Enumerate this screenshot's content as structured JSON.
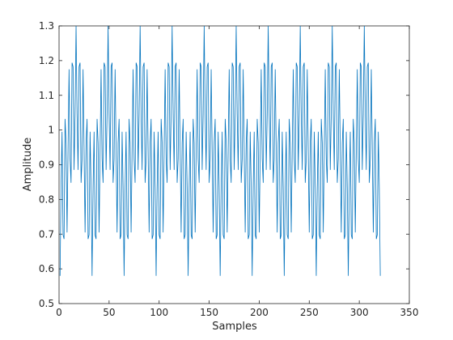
{
  "chart_data": {
    "type": "line",
    "xlabel": "Samples",
    "ylabel": "Amplitude",
    "color": "#0072bd",
    "xlim": [
      0,
      350
    ],
    "xticks": [
      0,
      50,
      100,
      150,
      200,
      250,
      300,
      350
    ],
    "ylim": [
      0.5,
      1.3
    ],
    "yticks": [
      0.5,
      0.6,
      0.7,
      0.8,
      0.9,
      1,
      1.1,
      1.2,
      1.3
    ],
    "x": [
      1,
      2,
      3,
      4,
      5,
      6,
      7,
      8,
      9,
      10,
      11,
      12,
      13,
      14,
      15,
      16,
      17,
      18,
      19,
      20,
      21,
      22,
      23,
      24,
      25,
      26,
      27,
      28,
      29,
      30,
      31,
      32,
      33,
      34,
      35,
      36,
      37,
      38,
      39,
      40,
      41,
      42,
      43,
      44,
      45,
      46,
      47,
      48,
      49,
      50,
      51,
      52,
      53,
      54,
      55,
      56,
      57,
      58,
      59,
      60,
      61,
      62,
      63,
      64,
      65,
      66,
      67,
      68,
      69,
      70,
      71,
      72,
      73,
      74,
      75,
      76,
      77,
      78,
      79,
      80,
      81,
      82,
      83,
      84,
      85,
      86,
      87,
      88,
      89,
      90,
      91,
      92,
      93,
      94,
      95,
      96,
      97,
      98,
      99,
      100,
      101,
      102,
      103,
      104,
      105,
      106,
      107,
      108,
      109,
      110,
      111,
      112,
      113,
      114,
      115,
      116,
      117,
      118,
      119,
      120,
      121,
      122,
      123,
      124,
      125,
      126,
      127,
      128,
      129,
      130,
      131,
      132,
      133,
      134,
      135,
      136,
      137,
      138,
      139,
      140,
      141,
      142,
      143,
      144,
      145,
      146,
      147,
      148,
      149,
      150,
      151,
      152,
      153,
      154,
      155,
      156,
      157,
      158,
      159,
      160,
      161,
      162,
      163,
      164,
      165,
      166,
      167,
      168,
      169,
      170,
      171,
      172,
      173,
      174,
      175,
      176,
      177,
      178,
      179,
      180,
      181,
      182,
      183,
      184,
      185,
      186,
      187,
      188,
      189,
      190,
      191,
      192,
      193,
      194,
      195,
      196,
      197,
      198,
      199,
      200,
      201,
      202,
      203,
      204,
      205,
      206,
      207,
      208,
      209,
      210,
      211,
      212,
      213,
      214,
      215,
      216,
      217,
      218,
      219,
      220,
      221,
      222,
      223,
      224,
      225,
      226,
      227,
      228,
      229,
      230,
      231,
      232,
      233,
      234,
      235,
      236,
      237,
      238,
      239,
      240,
      241,
      242,
      243,
      244,
      245,
      246,
      247,
      248,
      249,
      250,
      251,
      252,
      253,
      254,
      255,
      256,
      257,
      258,
      259,
      260,
      261,
      262,
      263,
      264,
      265,
      266,
      267,
      268,
      269,
      270,
      271,
      272,
      273,
      274,
      275,
      276,
      277,
      278,
      279,
      280,
      281,
      282,
      283,
      284,
      285,
      286,
      287,
      288,
      289,
      290,
      291,
      292,
      293,
      294,
      295,
      296,
      297,
      298,
      299,
      300,
      301,
      302,
      303,
      304,
      305,
      306,
      307,
      308,
      309,
      310,
      311,
      312,
      313,
      314,
      315,
      316,
      317,
      318,
      319,
      320,
      321
    ],
    "values": [
      0.58,
      0.834,
      0.995,
      0.698,
      0.686,
      1.032,
      0.963,
      0.705,
      0.94,
      1.175,
      0.917,
      0.848,
      1.194,
      1.182,
      0.885,
      1.046,
      1.3,
      1.046,
      0.885,
      1.182,
      1.194,
      0.848,
      0.917,
      1.175,
      0.94,
      0.705,
      0.963,
      1.032,
      0.686,
      0.698,
      0.995,
      0.834,
      0.58,
      0.834,
      0.995,
      0.698,
      0.686,
      1.032,
      0.963,
      0.705,
      0.94,
      1.175,
      0.917,
      0.848,
      1.194,
      1.182,
      0.885,
      1.046,
      1.3,
      1.046,
      0.885,
      1.182,
      1.194,
      0.848,
      0.917,
      1.175,
      0.94,
      0.705,
      0.963,
      1.032,
      0.686,
      0.698,
      0.995,
      0.834,
      0.58,
      0.834,
      0.995,
      0.698,
      0.686,
      1.032,
      0.963,
      0.705,
      0.94,
      1.175,
      0.917,
      0.848,
      1.194,
      1.182,
      0.885,
      1.046,
      1.3,
      1.046,
      0.885,
      1.182,
      1.194,
      0.848,
      0.917,
      1.175,
      0.94,
      0.705,
      0.963,
      1.032,
      0.686,
      0.698,
      0.995,
      0.834,
      0.58,
      0.834,
      0.995,
      0.698,
      0.686,
      1.032,
      0.963,
      0.705,
      0.94,
      1.175,
      0.917,
      0.848,
      1.194,
      1.182,
      0.885,
      1.046,
      1.3,
      1.046,
      0.885,
      1.182,
      1.194,
      0.848,
      0.917,
      1.175,
      0.94,
      0.705,
      0.963,
      1.032,
      0.686,
      0.698,
      0.995,
      0.834,
      0.58,
      0.834,
      0.995,
      0.698,
      0.686,
      1.032,
      0.963,
      0.705,
      0.94,
      1.175,
      0.917,
      0.848,
      1.194,
      1.182,
      0.885,
      1.046,
      1.3,
      1.046,
      0.885,
      1.182,
      1.194,
      0.848,
      0.917,
      1.175,
      0.94,
      0.705,
      0.963,
      1.032,
      0.686,
      0.698,
      0.995,
      0.834,
      0.58,
      0.834,
      0.995,
      0.698,
      0.686,
      1.032,
      0.963,
      0.705,
      0.94,
      1.175,
      0.917,
      0.848,
      1.194,
      1.182,
      0.885,
      1.046,
      1.3,
      1.046,
      0.885,
      1.182,
      1.194,
      0.848,
      0.917,
      1.175,
      0.94,
      0.705,
      0.963,
      1.032,
      0.686,
      0.698,
      0.995,
      0.834,
      0.58,
      0.834,
      0.995,
      0.698,
      0.686,
      1.032,
      0.963,
      0.705,
      0.94,
      1.175,
      0.917,
      0.848,
      1.194,
      1.182,
      0.885,
      1.046,
      1.3,
      1.046,
      0.885,
      1.182,
      1.194,
      0.848,
      0.917,
      1.175,
      0.94,
      0.705,
      0.963,
      1.032,
      0.686,
      0.698,
      0.995,
      0.834,
      0.58,
      0.834,
      0.995,
      0.698,
      0.686,
      1.032,
      0.963,
      0.705,
      0.94,
      1.175,
      0.917,
      0.848,
      1.194,
      1.182,
      0.885,
      1.046,
      1.3,
      1.046,
      0.885,
      1.182,
      1.194,
      0.848,
      0.917,
      1.175,
      0.94,
      0.705,
      0.963,
      1.032,
      0.686,
      0.698,
      0.995,
      0.834,
      0.58,
      0.834,
      0.995,
      0.698,
      0.686,
      1.032,
      0.963,
      0.705,
      0.94,
      1.175,
      0.917,
      0.848,
      1.194,
      1.182,
      0.885,
      1.046,
      1.3,
      1.046,
      0.885,
      1.182,
      1.194,
      0.848,
      0.917,
      1.175,
      0.94,
      0.705,
      0.963,
      1.032,
      0.686,
      0.698,
      0.995,
      0.834,
      0.58,
      0.834,
      0.995,
      0.698,
      0.686,
      1.032,
      0.963,
      0.705,
      0.94,
      1.175,
      0.917,
      0.848,
      1.194,
      1.182,
      0.885,
      1.046,
      1.3,
      1.046,
      0.885,
      1.182,
      1.194,
      0.848,
      0.917,
      1.175,
      0.94,
      0.705,
      0.963,
      1.032,
      0.686,
      0.698,
      0.995,
      0.834,
      0.58
    ]
  }
}
